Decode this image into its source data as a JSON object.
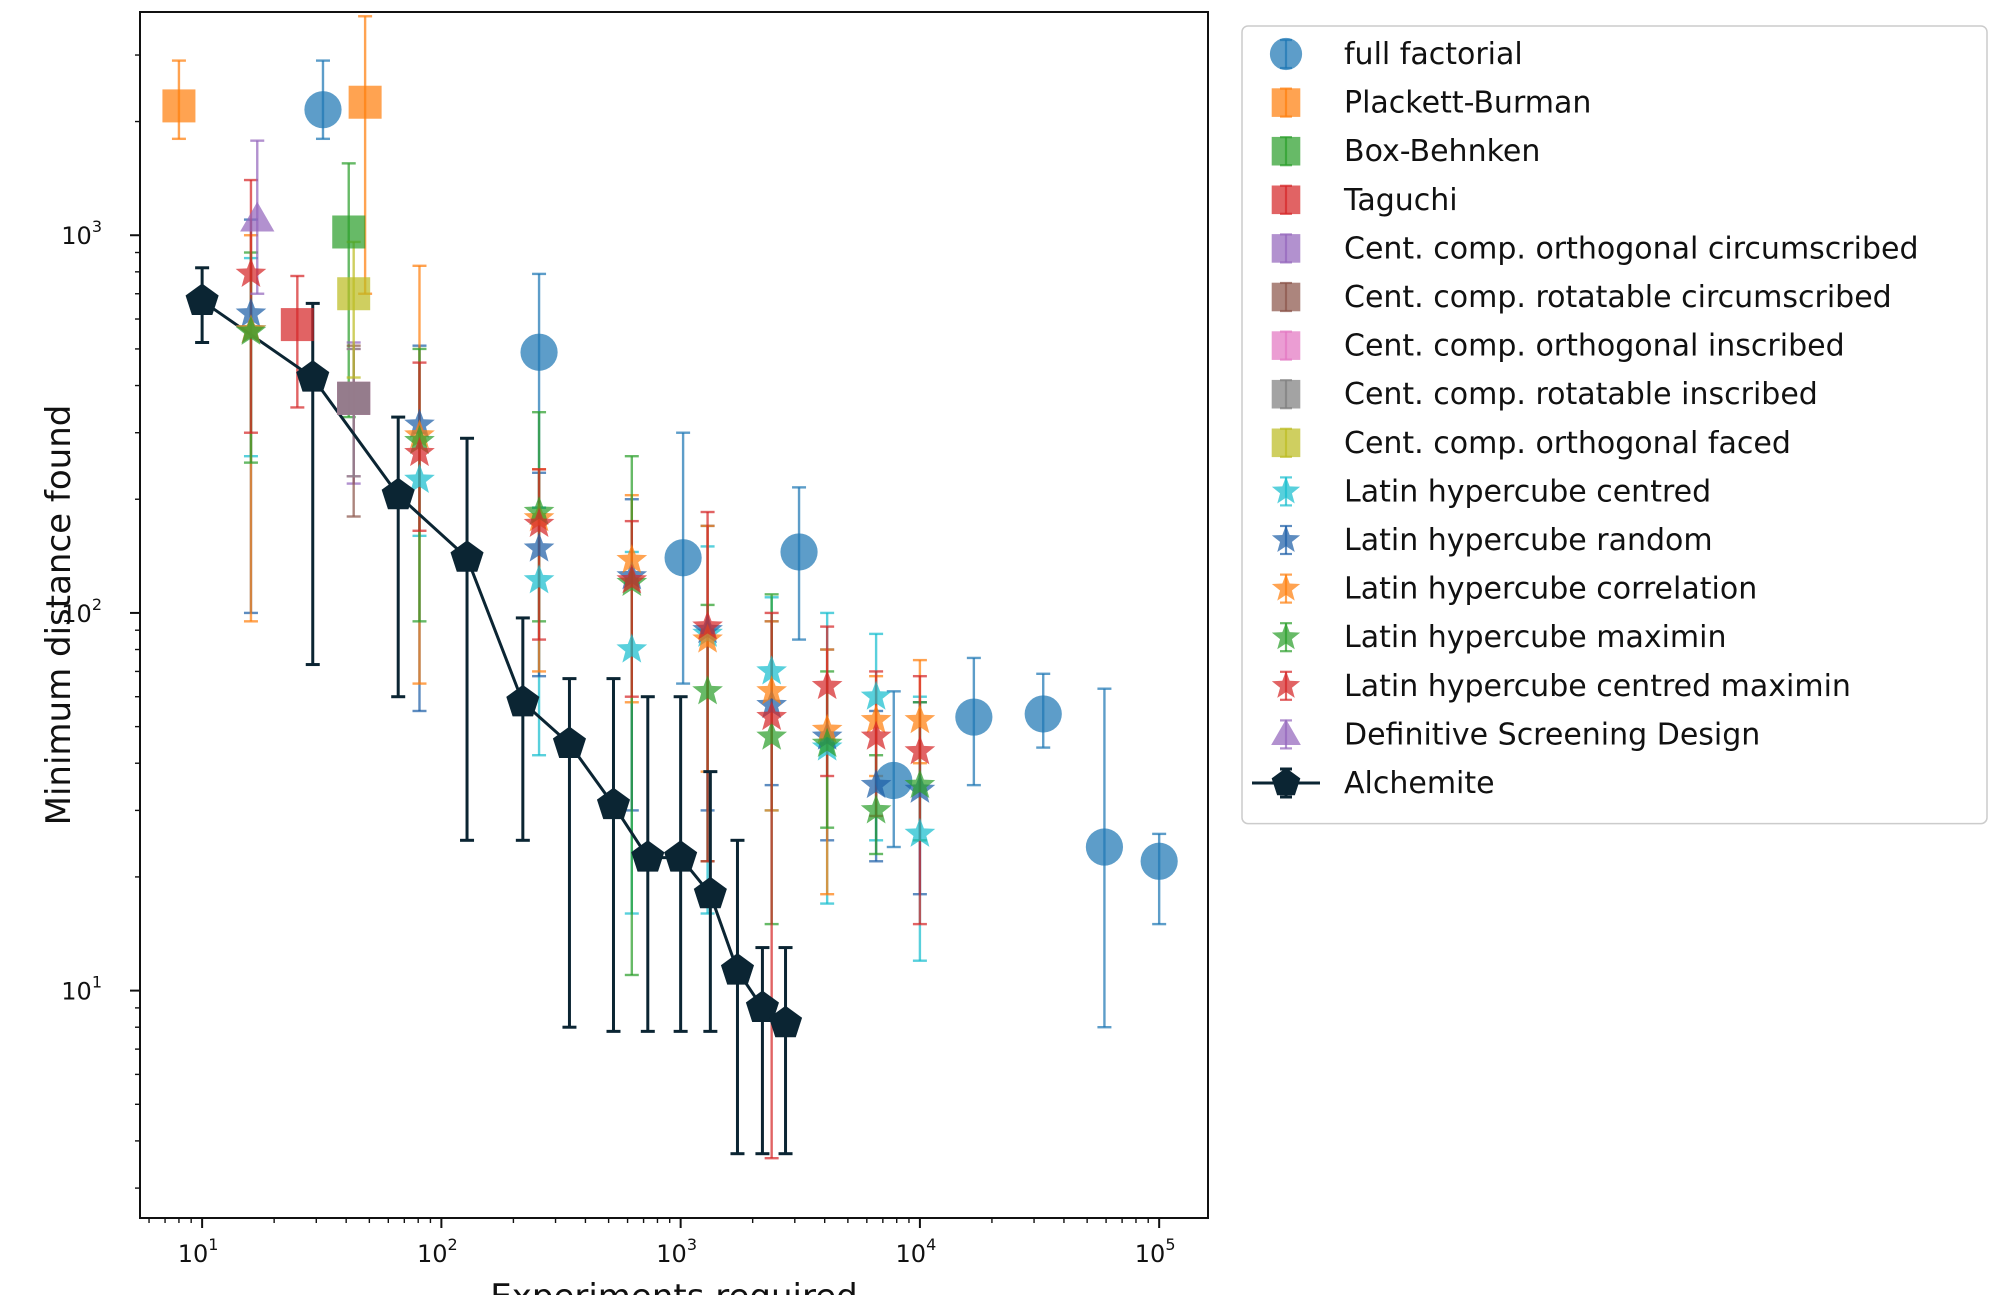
{
  "chart_data": {
    "type": "scatter",
    "xscale": "log",
    "yscale": "log",
    "xlabel": "Experiments required",
    "ylabel": "Minimum distance found",
    "xlim": [
      5.5,
      160000
    ],
    "ylim": [
      2.5,
      3900
    ],
    "x_ticks": [
      {
        "value": 10,
        "base": "10",
        "exp": "1"
      },
      {
        "value": 100,
        "base": "10",
        "exp": "2"
      },
      {
        "value": 1000,
        "base": "10",
        "exp": "3"
      },
      {
        "value": 10000,
        "base": "10",
        "exp": "4"
      },
      {
        "value": 100000,
        "base": "10",
        "exp": "5"
      }
    ],
    "y_ticks": [
      {
        "value": 10,
        "base": "10",
        "exp": "1"
      },
      {
        "value": 100,
        "base": "10",
        "exp": "2"
      },
      {
        "value": 1000,
        "base": "10",
        "exp": "3"
      }
    ],
    "legend_position": "outside-right",
    "series": [
      {
        "name": "full factorial",
        "color": "#1f77b4",
        "marker": "circle",
        "line": false,
        "points": [
          [
            32,
            2150,
            1800,
            2900
          ],
          [
            256,
            490,
            190,
            790
          ],
          [
            1024,
            140,
            65,
            300
          ],
          [
            3125,
            145,
            85,
            215
          ],
          [
            7776,
            36,
            24,
            62
          ],
          [
            16807,
            53,
            35,
            76
          ],
          [
            32768,
            54,
            44,
            69
          ],
          [
            59049,
            24,
            8,
            63
          ],
          [
            100000,
            22,
            15,
            26
          ]
        ]
      },
      {
        "name": "Plackett-Burman",
        "color": "#ff7f0e",
        "marker": "square",
        "line": false,
        "points": [
          [
            8,
            2200,
            1800,
            2900
          ],
          [
            48,
            2250,
            700,
            3800
          ]
        ]
      },
      {
        "name": "Box-Behnken",
        "color": "#2ca02c",
        "marker": "square",
        "line": false,
        "points": [
          [
            41,
            1020,
            330,
            1550
          ]
        ]
      },
      {
        "name": "Taguchi",
        "color": "#d62728",
        "marker": "square",
        "line": false,
        "points": [
          [
            25,
            580,
            350,
            780
          ]
        ]
      },
      {
        "name": "Cent. comp. orthogonal circumscribed",
        "color": "#9467bd",
        "marker": "square",
        "line": false,
        "points": [
          [
            43,
            370,
            220,
            520
          ]
        ]
      },
      {
        "name": "Cent. comp. rotatable circumscribed",
        "color": "#8c564b",
        "marker": "square",
        "line": false,
        "points": [
          [
            43,
            370,
            180,
            510
          ]
        ]
      },
      {
        "name": "Cent. comp. orthogonal inscribed",
        "color": "#e377c2",
        "marker": "square",
        "line": false,
        "points": [
          [
            43,
            370,
            230,
            500
          ]
        ]
      },
      {
        "name": "Cent. comp. rotatable inscribed",
        "color": "#7f7f7f",
        "marker": "square",
        "line": false,
        "points": [
          [
            43,
            370,
            230,
            500
          ]
        ]
      },
      {
        "name": "Cent. comp. orthogonal faced",
        "color": "#bcbd22",
        "marker": "square",
        "line": false,
        "points": [
          [
            43,
            700,
            420,
            960
          ]
        ]
      },
      {
        "name": "Latin hypercube centred",
        "color": "#17becf",
        "marker": "star",
        "line": false,
        "points": [
          [
            16,
            560,
            260,
            870
          ],
          [
            81,
            225,
            160,
            300
          ],
          [
            256,
            122,
            42,
            190
          ],
          [
            625,
            80,
            16,
            145
          ],
          [
            1296,
            88,
            16,
            150
          ],
          [
            2401,
            70,
            30,
            110
          ],
          [
            4096,
            44,
            17,
            100
          ],
          [
            6561,
            60,
            25,
            88
          ],
          [
            10000,
            26,
            12,
            60
          ]
        ]
      },
      {
        "name": "Latin hypercube random",
        "color": "#1f5fa8",
        "marker": "star",
        "line": false,
        "points": [
          [
            16,
            620,
            100,
            1100
          ],
          [
            81,
            315,
            55,
            510
          ],
          [
            256,
            148,
            68,
            235
          ],
          [
            625,
            125,
            30,
            200
          ],
          [
            1296,
            90,
            30,
            170
          ],
          [
            2401,
            57,
            35,
            95
          ],
          [
            4096,
            47,
            25,
            80
          ],
          [
            6561,
            35,
            22,
            55
          ],
          [
            10000,
            34,
            18,
            58
          ]
        ]
      },
      {
        "name": "Latin hypercube correlation",
        "color": "#ff7f0e",
        "marker": "star",
        "line": false,
        "points": [
          [
            16,
            560,
            95,
            1000
          ],
          [
            81,
            295,
            65,
            830
          ],
          [
            256,
            178,
            70,
            240
          ],
          [
            625,
            138,
            58,
            205
          ],
          [
            1296,
            85,
            38,
            170
          ],
          [
            2401,
            62,
            30,
            95
          ],
          [
            4096,
            49,
            18,
            80
          ],
          [
            6561,
            52,
            37,
            68
          ],
          [
            10000,
            52,
            40,
            75
          ]
        ]
      },
      {
        "name": "Latin hypercube maximin",
        "color": "#2ca02c",
        "marker": "star",
        "line": false,
        "points": [
          [
            16,
            555,
            250,
            900
          ],
          [
            81,
            285,
            95,
            500
          ],
          [
            256,
            185,
            95,
            340
          ],
          [
            625,
            120,
            11,
            260
          ],
          [
            1296,
            62,
            22,
            105
          ],
          [
            2401,
            47,
            15,
            112
          ],
          [
            4096,
            45,
            27,
            70
          ],
          [
            6561,
            30,
            23,
            42
          ],
          [
            10000,
            35,
            25,
            58
          ]
        ]
      },
      {
        "name": "Latin hypercube centred maximin",
        "color": "#d62728",
        "marker": "star",
        "line": false,
        "points": [
          [
            16,
            790,
            300,
            1400
          ],
          [
            81,
            265,
            165,
            460
          ],
          [
            256,
            172,
            85,
            240
          ],
          [
            625,
            122,
            60,
            175
          ],
          [
            1296,
            92,
            22,
            185
          ],
          [
            2401,
            53,
            3.6,
            100
          ],
          [
            4096,
            64,
            37,
            92
          ],
          [
            6561,
            47,
            29,
            70
          ],
          [
            10000,
            43,
            15,
            68
          ]
        ]
      },
      {
        "name": "Definitive Screening Design",
        "color": "#9467bd",
        "marker": "triangle",
        "line": false,
        "points": [
          [
            17,
            1100,
            700,
            1780
          ]
        ]
      },
      {
        "name": "Alchemite",
        "color": "#0b2533",
        "marker": "pentagon",
        "line": true,
        "points": [
          [
            10,
            670,
            520,
            820
          ],
          [
            29,
            420,
            73,
            660
          ],
          [
            66,
            205,
            60,
            330
          ],
          [
            128,
            140,
            25,
            290
          ],
          [
            219,
            58,
            25,
            97
          ],
          [
            343,
            45,
            8,
            67
          ],
          [
            524,
            31,
            7.8,
            67
          ],
          [
            729,
            22.5,
            7.8,
            60
          ],
          [
            1000,
            22.5,
            7.8,
            60
          ],
          [
            1331,
            18,
            7.8,
            38
          ],
          [
            1728,
            11.3,
            3.7,
            25
          ],
          [
            2197,
            9,
            3.7,
            13
          ],
          [
            2744,
            8.2,
            3.7,
            13
          ]
        ]
      }
    ]
  }
}
